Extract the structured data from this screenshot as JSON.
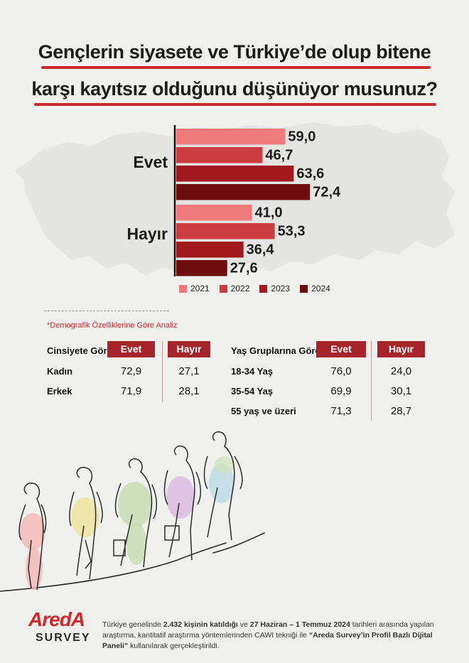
{
  "title": {
    "line1": "Gençlerin siyasete ve Türkiye’de olup bitene",
    "line2": "karşı kayıtsız olduğunu düşünüyor musunuz?"
  },
  "colors": {
    "accent": "#c9292c",
    "series": [
      "#f07a7c",
      "#cc3b3f",
      "#a3181d",
      "#6e0e11"
    ],
    "header": "#a5252a"
  },
  "chart_data": {
    "type": "bar",
    "orientation": "horizontal",
    "categories": [
      "Evet",
      "Hayır"
    ],
    "series": [
      {
        "name": "2021",
        "values": [
          59.0,
          41.0
        ]
      },
      {
        "name": "2022",
        "values": [
          46.7,
          53.3
        ]
      },
      {
        "name": "2023",
        "values": [
          63.6,
          36.4
        ]
      },
      {
        "name": "2024",
        "values": [
          72.4,
          27.6
        ]
      }
    ],
    "value_labels": [
      [
        "59,0",
        "46,7",
        "63,6",
        "72,4"
      ],
      [
        "41,0",
        "53,3",
        "36,4",
        "27,6"
      ]
    ],
    "legend_position": "bottom",
    "grid": false
  },
  "legend": [
    "2021",
    "2022",
    "2023",
    "2024"
  ],
  "subtitle": "*Demografik Özelliklerine Göre Analiz",
  "gender_table": {
    "title": "Cinsiyete Göre",
    "headers": [
      "Evet",
      "Hayır"
    ],
    "rows": [
      {
        "label": "Kadın",
        "evet": "72,9",
        "hayir": "27,1"
      },
      {
        "label": "Erkek",
        "evet": "71,9",
        "hayir": "28,1"
      }
    ]
  },
  "age_table": {
    "title": "Yaş Gruplarına Göre",
    "headers": [
      "Evet",
      "Hayır"
    ],
    "rows": [
      {
        "label": "18-34 Yaş",
        "evet": "76,0",
        "hayir": "24,0"
      },
      {
        "label": "35-54 Yaş",
        "evet": "69,9",
        "hayir": "30,1"
      },
      {
        "label": "55 yaş ve üzeri",
        "evet": "71,3",
        "hayir": "28,7"
      }
    ]
  },
  "logo": {
    "main": "AredA",
    "sub": "SURVEY"
  },
  "footnote": {
    "p1": "Türkiye genelinde ",
    "b1": "2.432 kişinin katıldığı",
    "p2": " ve ",
    "b2": "27 Haziran – 1 Temmuz 2024",
    "p3": " tarihleri arasında yapılan araştırma, kantitatif araştırma yöntemlerinden CAWI tekniği ile ",
    "b3": "“Areda Survey’in Profil Bazlı Dijital Paneli”",
    "p4": " kullanılarak gerçekleştirildi."
  }
}
